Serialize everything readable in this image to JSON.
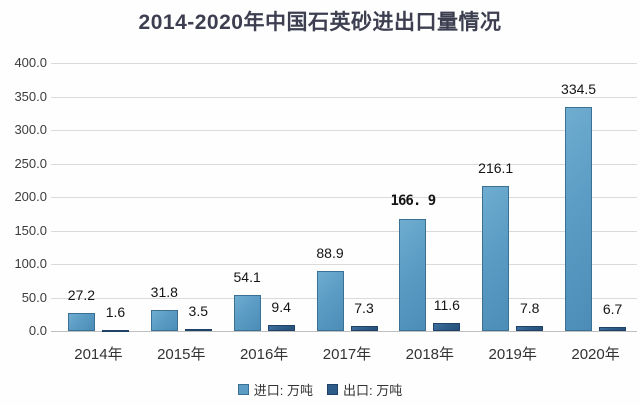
{
  "chart_data": {
    "type": "bar",
    "title": "2014-2020年中国石英砂进出口量情况",
    "categories": [
      "2014年",
      "2015年",
      "2016年",
      "2017年",
      "2018年",
      "2019年",
      "2020年"
    ],
    "series": [
      {
        "name": "进口: 万吨",
        "values": [
          27.2,
          31.8,
          54.1,
          88.9,
          166.9,
          216.1,
          334.5
        ],
        "labels": [
          "27.2",
          "31.8",
          "54.1",
          "88.9",
          "166. 9",
          "216.1",
          "334.5"
        ],
        "color": "#5b9cc4"
      },
      {
        "name": "出口: 万吨",
        "values": [
          1.6,
          3.5,
          9.4,
          7.3,
          11.6,
          7.8,
          6.7
        ],
        "labels": [
          "1.6",
          "3.5",
          "9.4",
          "7.3",
          "11.6",
          "7.8",
          "6.7"
        ],
        "color": "#2e5c8a"
      }
    ],
    "ylim": [
      0,
      400
    ],
    "ytick_step": 50,
    "ytick_labels": [
      "0.0",
      "50.0",
      "100.0",
      "150.0",
      "200.0",
      "250.0",
      "300.0",
      "350.0",
      "400.0"
    ],
    "xlabel": "",
    "ylabel": "",
    "grid": true,
    "legend_position": "bottom",
    "emphasized_label": {
      "series": 0,
      "index": 4
    }
  },
  "colors": {
    "title": "#3d3f51",
    "gridline": "#dadada",
    "baseline": "#bfbfbf",
    "import_bar": "#5b9cc4",
    "export_bar": "#2e5c8a",
    "value_text": "#141414",
    "axis_text": "#333333"
  }
}
